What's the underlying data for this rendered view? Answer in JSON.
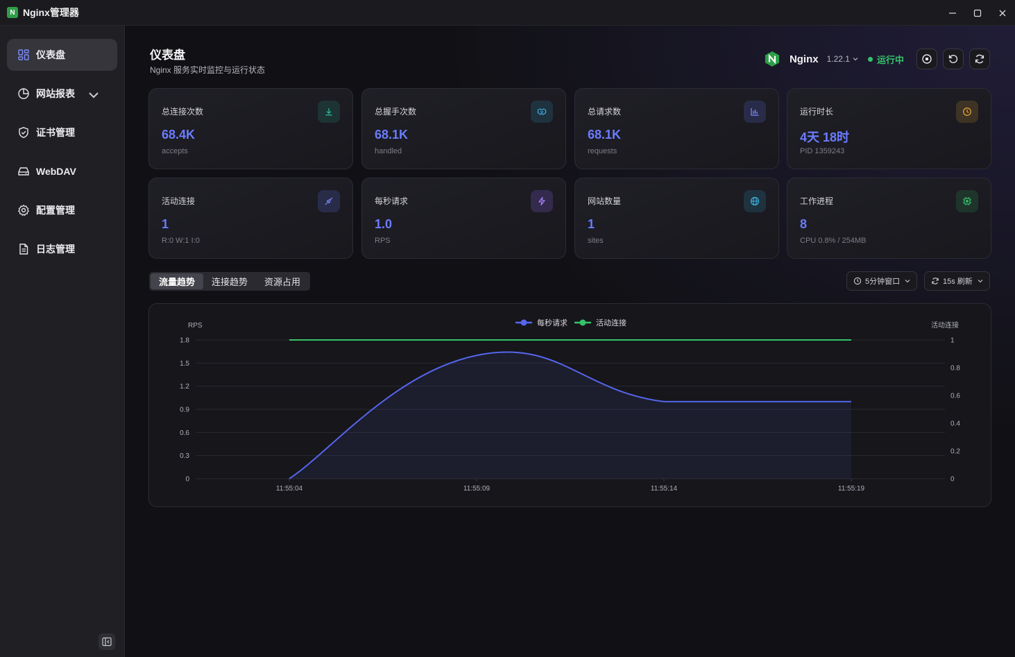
{
  "titlebar": {
    "title": "Nginx管理器",
    "logo_letter": "N"
  },
  "sidebar": {
    "items": [
      {
        "label": "仪表盘",
        "icon": "dashboard-icon"
      },
      {
        "label": "网站报表",
        "icon": "pie-chart-icon"
      },
      {
        "label": "证书管理",
        "icon": "shield-icon"
      },
      {
        "label": "WebDAV",
        "icon": "drive-icon"
      },
      {
        "label": "配置管理",
        "icon": "gear-icon"
      },
      {
        "label": "日志管理",
        "icon": "file-icon"
      }
    ]
  },
  "header": {
    "title": "仪表盘",
    "subtitle": "Nginx 服务实时监控与运行状态",
    "server_name": "Nginx",
    "version": "1.22.1",
    "status": "运行中"
  },
  "cards": [
    {
      "label": "总连接次数",
      "value": "68.4K",
      "sub": "accepts",
      "icon": "download-icon",
      "color": "#2bb59a"
    },
    {
      "label": "总握手次数",
      "value": "68.1K",
      "sub": "handled",
      "icon": "handshake-icon",
      "color": "#3ab0e0"
    },
    {
      "label": "总请求数",
      "value": "68.1K",
      "sub": "requests",
      "icon": "bar-chart-icon",
      "color": "#6b7cff"
    },
    {
      "label": "运行时长",
      "value": "4天 18时",
      "sub": "PID 1359243",
      "icon": "clock-icon",
      "color": "#e0a030"
    },
    {
      "label": "活动连接",
      "value": "1",
      "sub": "R:0 W:1 I:0",
      "icon": "plug-icon",
      "color": "#6b7cff"
    },
    {
      "label": "每秒请求",
      "value": "1.0",
      "sub": "RPS",
      "icon": "lightning-icon",
      "color": "#9a6bff"
    },
    {
      "label": "网站数量",
      "value": "1",
      "sub": "sites",
      "icon": "globe-icon",
      "color": "#3ab0e0"
    },
    {
      "label": "工作进程",
      "value": "8",
      "sub": "CPU 0.8% / 254MB",
      "icon": "cpu-icon",
      "color": "#36c26a"
    }
  ],
  "tabs": [
    {
      "label": "流量趋势",
      "active": true
    },
    {
      "label": "连接趋势",
      "active": false
    },
    {
      "label": "资源占用",
      "active": false
    }
  ],
  "controls": {
    "window": "5分钟窗口",
    "refresh": "15s 刷新"
  },
  "chart_data": {
    "type": "line",
    "x": [
      "11:55:04",
      "11:55:09",
      "11:55:14",
      "11:55:19"
    ],
    "left_axis": {
      "label": "RPS",
      "ylim": [
        0,
        1.8
      ],
      "ticks": [
        "0",
        "0.3",
        "0.6",
        "0.9",
        "1.2",
        "1.5",
        "1.8"
      ]
    },
    "right_axis": {
      "label": "活动连接",
      "ylim": [
        0,
        1
      ],
      "ticks": [
        "0",
        "0.2",
        "0.4",
        "0.6",
        "0.8",
        "1"
      ]
    },
    "legend_position": "top-center",
    "grid": true,
    "series": [
      {
        "name": "每秒请求",
        "axis": "left",
        "color": "#5566ee",
        "values": [
          0,
          1.6,
          1.0,
          1.0
        ]
      },
      {
        "name": "活动连接",
        "axis": "right",
        "color": "#36c26a",
        "values": [
          1,
          1,
          1,
          1
        ]
      }
    ]
  }
}
